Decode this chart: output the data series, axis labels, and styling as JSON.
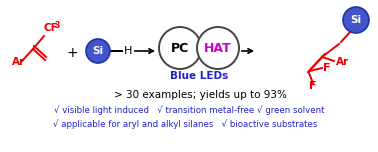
{
  "bg_color": "#ffffff",
  "red": "#ee0000",
  "blue_dark": "#2222cc",
  "magenta": "#cc00cc",
  "black": "#000000",
  "si_ball_color": "#4455cc",
  "si_ball_edge": "#2233aa",
  "bottom_line1": "√ visible light induced   √ transition metal-free √ green solvent",
  "bottom_line2": "√ applicable for aryl and alkyl silanes   √ bioactive substrates",
  "middle_text": "> 30 examples; yields up to 93%",
  "blue_leds_text": "Blue LEDs",
  "pc_text": "PC",
  "hat_text": "HAT",
  "fig_width": 3.78,
  "fig_height": 1.52,
  "dpi": 100
}
